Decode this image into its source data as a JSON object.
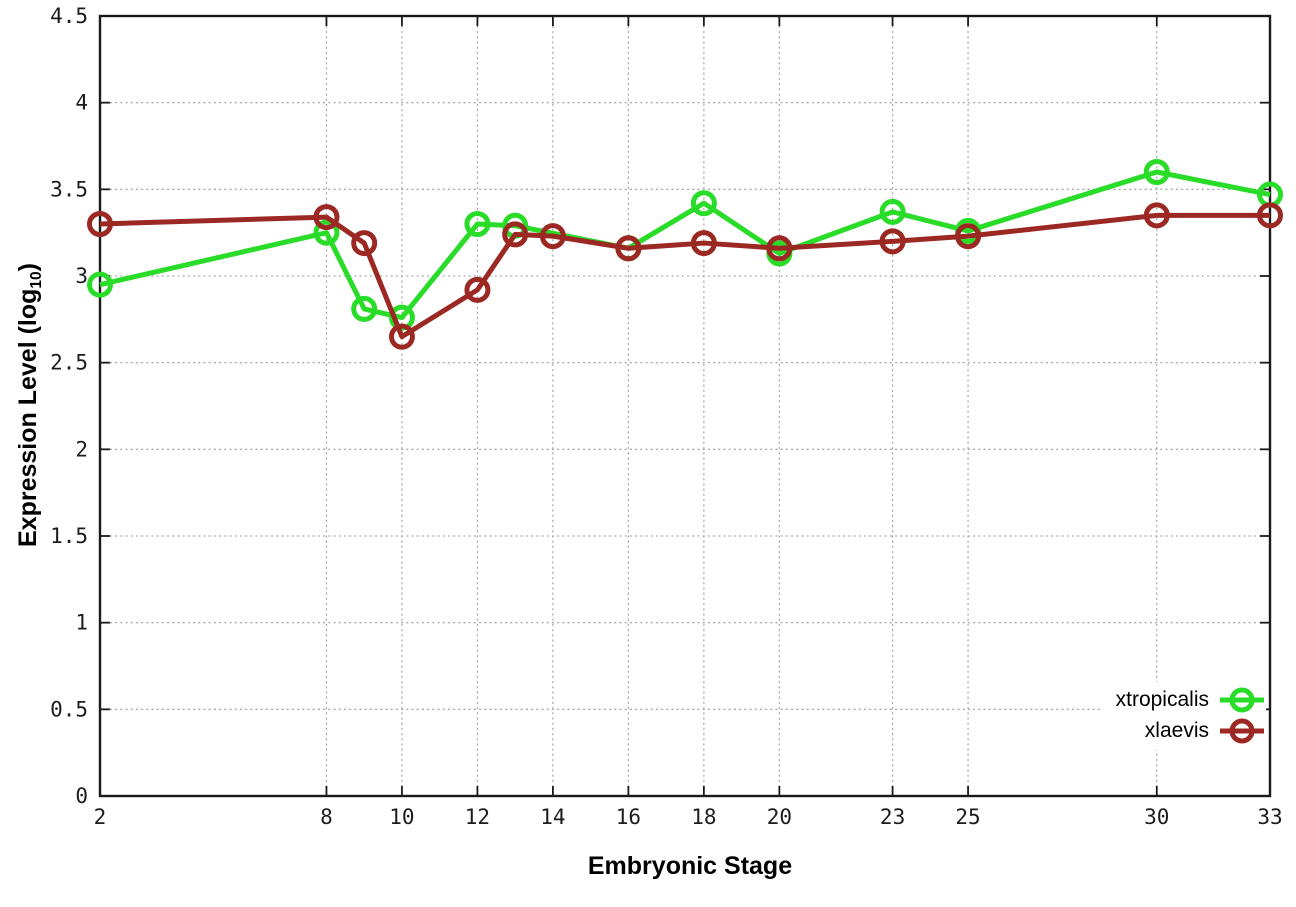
{
  "chart_data": {
    "type": "line",
    "title": "",
    "xlabel": "Embryonic Stage",
    "ylabel": {
      "prefix": "Expression Level (log",
      "sub": "10",
      "suffix": ")"
    },
    "xlim": [
      2,
      33
    ],
    "ylim": [
      0,
      4.5
    ],
    "xticks": [
      2,
      8,
      10,
      12,
      14,
      16,
      18,
      20,
      23,
      25,
      30,
      33
    ],
    "yticks": [
      0,
      0.5,
      1,
      1.5,
      2,
      2.5,
      3,
      3.5,
      4,
      4.5
    ],
    "grid": true,
    "grid_style": "dotted",
    "legend_position": "bottom-right",
    "marker": "open-circle",
    "series": [
      {
        "name": "xtropicalis",
        "color": "#28dc28",
        "x": [
          2,
          8,
          9,
          10,
          12,
          13,
          16,
          18,
          20,
          23,
          25,
          30,
          33
        ],
        "y": [
          2.95,
          3.25,
          2.81,
          2.76,
          3.3,
          3.29,
          3.16,
          3.42,
          3.13,
          3.37,
          3.26,
          3.6,
          3.47
        ]
      },
      {
        "name": "xlaevis",
        "color": "#9c2823",
        "x": [
          2,
          8,
          9,
          10,
          12,
          13,
          14,
          16,
          18,
          20,
          23,
          25,
          30,
          33
        ],
        "y": [
          3.3,
          3.34,
          3.19,
          2.65,
          2.92,
          3.24,
          3.23,
          3.16,
          3.19,
          3.16,
          3.2,
          3.23,
          3.35,
          3.35
        ]
      }
    ]
  }
}
